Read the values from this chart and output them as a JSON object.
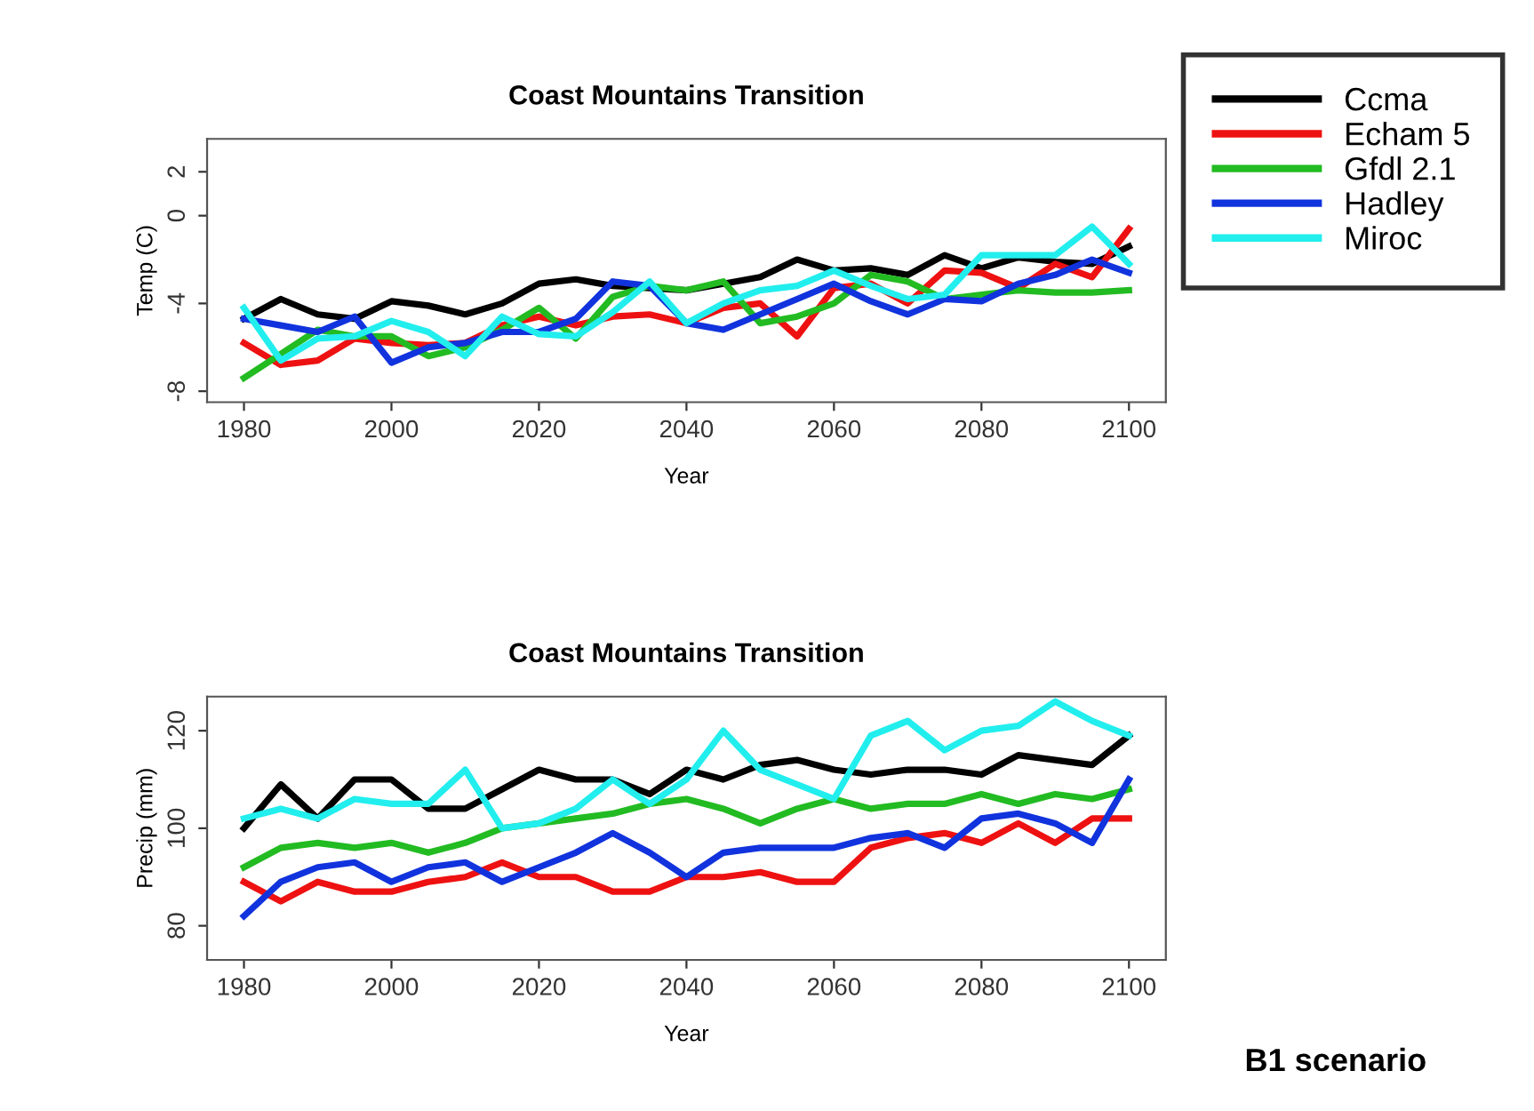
{
  "chart_data": [
    {
      "type": "line",
      "title": "Coast Mountains Transition",
      "xlabel": "Year",
      "ylabel": "Temp (C)",
      "legend": "top right",
      "grid": false,
      "x": [
        1980,
        1985,
        1990,
        1995,
        2000,
        2005,
        2010,
        2015,
        2020,
        2025,
        2030,
        2035,
        2040,
        2045,
        2050,
        2055,
        2060,
        2065,
        2070,
        2075,
        2080,
        2085,
        2090,
        2095,
        2100
      ],
      "xlim": [
        1975,
        2105
      ],
      "xticks": [
        1980,
        2000,
        2020,
        2040,
        2060,
        2080,
        2100
      ],
      "ylim": [
        -8.5,
        3.5
      ],
      "yticks": [
        -8,
        -4,
        0,
        2
      ],
      "series": [
        {
          "name": "Ccma",
          "color": "#000000",
          "values": [
            -4.7,
            -3.8,
            -4.5,
            -4.7,
            -3.9,
            -4.1,
            -4.5,
            -4.0,
            -3.1,
            -2.9,
            -3.2,
            -3.3,
            -3.4,
            -3.1,
            -2.8,
            -2.0,
            -2.5,
            -2.4,
            -2.7,
            -1.8,
            -2.4,
            -1.9,
            -2.1,
            -2.2,
            -1.4
          ]
        },
        {
          "name": "Echam 5",
          "color": "#ee1111",
          "values": [
            -5.8,
            -6.8,
            -6.6,
            -5.6,
            -5.8,
            -5.9,
            -5.8,
            -5.0,
            -4.6,
            -5.0,
            -4.6,
            -4.5,
            -4.9,
            -4.2,
            -4.0,
            -5.5,
            -3.3,
            -3.1,
            -4.0,
            -2.5,
            -2.6,
            -3.3,
            -2.2,
            -2.8,
            -0.6
          ]
        },
        {
          "name": "Gfdl 2.1",
          "color": "#22bb22",
          "values": [
            -7.4,
            -6.3,
            -5.2,
            -5.5,
            -5.5,
            -6.4,
            -6.0,
            -5.2,
            -4.2,
            -5.6,
            -3.7,
            -3.2,
            -3.4,
            -3.0,
            -4.9,
            -4.6,
            -4.0,
            -2.7,
            -3.0,
            -3.8,
            -3.6,
            -3.4,
            -3.5,
            -3.5,
            -3.4
          ]
        },
        {
          "name": "Hadley",
          "color": "#1133dd",
          "values": [
            -4.7,
            -5.0,
            -5.3,
            -4.6,
            -6.7,
            -6.0,
            -5.8,
            -5.3,
            -5.3,
            -4.7,
            -3.0,
            -3.2,
            -4.9,
            -5.2,
            -4.5,
            -3.8,
            -3.1,
            -3.9,
            -4.5,
            -3.8,
            -3.9,
            -3.1,
            -2.7,
            -2.0,
            -2.6
          ]
        },
        {
          "name": "Miroc",
          "color": "#22eeee",
          "values": [
            -4.2,
            -6.6,
            -5.6,
            -5.5,
            -4.8,
            -5.3,
            -6.4,
            -4.6,
            -5.4,
            -5.5,
            -4.4,
            -3.0,
            -4.9,
            -4.0,
            -3.4,
            -3.2,
            -2.5,
            -3.2,
            -3.8,
            -3.6,
            -1.8,
            -1.8,
            -1.8,
            -0.5,
            -2.2
          ]
        }
      ]
    },
    {
      "type": "line",
      "title": "Coast Mountains Transition",
      "xlabel": "Year",
      "ylabel": "Precip (mm)",
      "grid": false,
      "annotations": [
        "B1 scenario"
      ],
      "x": [
        1980,
        1985,
        1990,
        1995,
        2000,
        2005,
        2010,
        2015,
        2020,
        2025,
        2030,
        2035,
        2040,
        2045,
        2050,
        2055,
        2060,
        2065,
        2070,
        2075,
        2080,
        2085,
        2090,
        2095,
        2100
      ],
      "xlim": [
        1975,
        2105
      ],
      "xticks": [
        1980,
        2000,
        2020,
        2040,
        2060,
        2080,
        2100
      ],
      "ylim": [
        73,
        127
      ],
      "yticks": [
        80,
        100,
        120
      ],
      "series": [
        {
          "color": "#000000",
          "values": [
            100,
            109,
            102,
            110,
            110,
            104,
            104,
            108,
            112,
            110,
            110,
            107,
            112,
            110,
            113,
            114,
            112,
            111,
            112,
            112,
            111,
            115,
            114,
            113,
            119
          ]
        },
        {
          "color": "#ee1111",
          "values": [
            89,
            85,
            89,
            87,
            87,
            89,
            90,
            93,
            90,
            90,
            87,
            87,
            90,
            90,
            91,
            89,
            89,
            96,
            98,
            99,
            97,
            101,
            97,
            102,
            102
          ]
        },
        {
          "color": "#22bb22",
          "values": [
            92,
            96,
            97,
            96,
            97,
            95,
            97,
            100,
            101,
            102,
            103,
            105,
            106,
            104,
            101,
            104,
            106,
            104,
            105,
            105,
            107,
            105,
            107,
            106,
            108
          ]
        },
        {
          "color": "#1133dd",
          "values": [
            82,
            89,
            92,
            93,
            89,
            92,
            93,
            89,
            92,
            95,
            99,
            95,
            90,
            95,
            96,
            96,
            96,
            98,
            99,
            96,
            102,
            103,
            101,
            97,
            110
          ]
        },
        {
          "color": "#22eeee",
          "values": [
            102,
            104,
            102,
            106,
            105,
            105,
            112,
            100,
            101,
            104,
            110,
            105,
            110,
            120,
            112,
            109,
            106,
            119,
            122,
            116,
            120,
            121,
            126,
            122,
            119
          ]
        }
      ]
    }
  ]
}
